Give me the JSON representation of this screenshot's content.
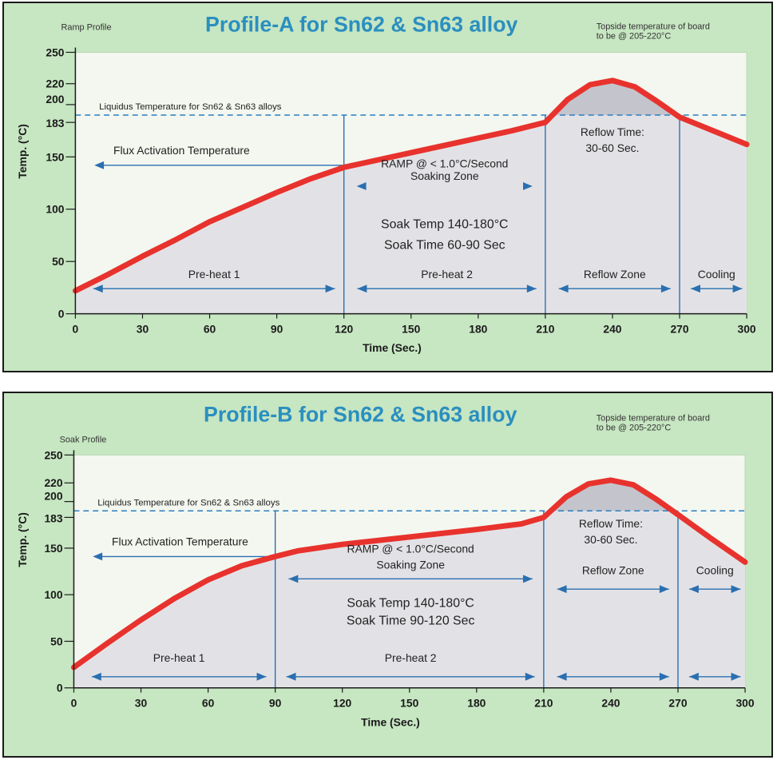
{
  "chart_data": [
    {
      "type": "line",
      "title": "Profile-A for Sn62 & Sn63 alloy",
      "subtitle": "Ramp Profile",
      "top_note": [
        "Topside temperature of board",
        "to be @ 205-220°C"
      ],
      "xlabel": "Time (Sec.)",
      "ylabel": "Temp. (°C)",
      "xlim": [
        0,
        300
      ],
      "ylim": [
        0,
        250
      ],
      "x_ticks": [
        0,
        30,
        60,
        90,
        120,
        150,
        180,
        210,
        240,
        270,
        300
      ],
      "x_tick_labels": [
        "0",
        "30",
        "60",
        "90",
        "120",
        "150",
        "180",
        "210",
        "240",
        "270",
        "300"
      ],
      "y_ticks": [
        0,
        50,
        100,
        150,
        183,
        200,
        220,
        250
      ],
      "y_tick_labels": [
        "0",
        "50",
        "100",
        "150",
        "183",
        "200",
        "220",
        "250"
      ],
      "series": [
        {
          "x": [
            0,
            15,
            30,
            45,
            60,
            75,
            90,
            105,
            120,
            135,
            150,
            165,
            180,
            195,
            210,
            220,
            230,
            240,
            250,
            260,
            270,
            285,
            300
          ],
          "y": [
            22,
            38,
            55,
            71,
            88,
            102,
            116,
            129,
            140,
            147,
            154,
            161,
            168,
            175,
            183,
            205,
            219,
            223,
            217,
            203,
            188,
            175,
            162
          ]
        }
      ],
      "liquidus": {
        "y": 190,
        "label": "Liquidus Temperature for Sn62 & Sn63 alloys"
      },
      "zone_lines_x": [
        120,
        210,
        270
      ],
      "flux": {
        "x": 120,
        "y": 142,
        "label": "Flux Activation Temperature"
      },
      "annotations": {
        "ramp": "RAMP @ < 1.0°C/Second",
        "soaking": "Soaking Zone",
        "soak_temp": "Soak Temp 140-180°C",
        "soak_time": "Soak Time 60-90 Sec",
        "reflow_time_1": "Reflow Time:",
        "reflow_time_2": "30-60 Sec.",
        "soaking_arrow": [
          125,
          205
        ],
        "reflow_time_pos": [
          240,
          170
        ]
      },
      "zones": [
        {
          "label": "Pre-heat 1",
          "x0": 8,
          "x1": 116
        },
        {
          "label": "Pre-heat 2",
          "x0": 126,
          "x1": 206
        },
        {
          "label": "Reflow Zone",
          "x0": 216,
          "x1": 266
        },
        {
          "label": "Cooling",
          "x0": 275,
          "x1": 298
        }
      ]
    },
    {
      "type": "line",
      "title": "Profile-B for Sn62 & Sn63 alloy",
      "subtitle": "Soak Profile",
      "top_note": [
        "Topside temperature of board",
        "to be @ 205-220°C"
      ],
      "xlabel": "Time (Sec.)",
      "ylabel": "Temp. (°C)",
      "xlim": [
        0,
        300
      ],
      "ylim": [
        0,
        250
      ],
      "x_ticks": [
        0,
        30,
        60,
        90,
        120,
        150,
        180,
        210,
        240,
        270,
        300
      ],
      "x_tick_labels": [
        "0",
        "30",
        "60",
        "90",
        "120",
        "150",
        "180",
        "210",
        "240",
        "270",
        "300"
      ],
      "y_ticks": [
        0,
        50,
        100,
        150,
        183,
        200,
        220,
        250
      ],
      "y_tick_labels": [
        "0",
        "50",
        "100",
        "150",
        "183",
        "200",
        "220",
        "250"
      ],
      "series": [
        {
          "x": [
            0,
            15,
            30,
            45,
            60,
            75,
            90,
            100,
            120,
            150,
            180,
            200,
            210,
            220,
            230,
            240,
            250,
            260,
            270,
            285,
            300
          ],
          "y": [
            22,
            48,
            73,
            96,
            116,
            131,
            141,
            147,
            154,
            162,
            170,
            176,
            183,
            205,
            219,
            223,
            218,
            203,
            186,
            160,
            135
          ]
        }
      ],
      "liquidus": {
        "y": 190,
        "label": "Liquidus Temperature for Sn62 & Sn63 alloys"
      },
      "zone_lines_x": [
        90,
        210,
        270
      ],
      "flux": {
        "x": 90,
        "y": 141,
        "label": "Flux Activation Temperature"
      },
      "annotations": {
        "ramp": "RAMP @ < 1.0°C/Second",
        "soaking": "Soaking Zone",
        "soak_temp": "Soak Temp 140-180°C",
        "soak_time": "Soak Time 90-120 Sec",
        "reflow_time_1": "Reflow Time:",
        "reflow_time_2": "30-60 Sec.",
        "soaking_arrow": [
          96,
          205
        ],
        "reflow_time_pos": [
          240,
          172
        ]
      },
      "zones": [
        {
          "label": "Pre-heat 1",
          "x0": 8,
          "x1": 86
        },
        {
          "label": "Pre-heat 2",
          "x0": 95,
          "x1": 206
        },
        {
          "label": "Reflow Zone",
          "x0": 216,
          "x1": 266
        },
        {
          "label": "Cooling",
          "x0": 275,
          "x1": 298
        }
      ]
    }
  ]
}
